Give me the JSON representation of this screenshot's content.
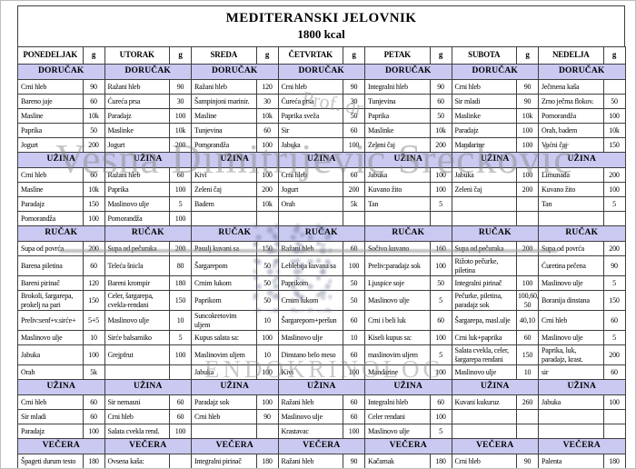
{
  "page": {
    "title_line1": "MEDITERANSKI JELOVNIK",
    "title_line2": "1800 kcal"
  },
  "colors": {
    "section_header_bg": "#c9c9f1",
    "border": "#3f3f3f",
    "watermark_gray": "#8a8a8a"
  },
  "watermarks": {
    "prof": "Prof. dr",
    "name": "Vesna Dimitrijević Srećković",
    "endo": "ENDOKRINOLOG"
  },
  "table": {
    "g_label": "g",
    "days": [
      "PONEDELJAK",
      "UTORAK",
      "SREDA",
      "ČETVRTAK",
      "PETAK",
      "SUBOTA",
      "NEDELJA"
    ],
    "sections": [
      {
        "label": "DORUČAK",
        "rows": [
          [
            [
              "Crni hleb",
              "90"
            ],
            [
              "Ražani hleb",
              "90"
            ],
            [
              "Ražani hleb",
              "120"
            ],
            [
              "Crni hleb",
              "90"
            ],
            [
              "Integralni hleb",
              "90"
            ],
            [
              "Crni hleb",
              "90"
            ],
            [
              "Ječmena kaša",
              ""
            ]
          ],
          [
            [
              "Bareno jaje",
              "60"
            ],
            [
              "Ćureća prsa",
              "30"
            ],
            [
              "Šampinjoni marinir.",
              "30"
            ],
            [
              "Ćureća prsa",
              "30"
            ],
            [
              "Tunjevina",
              "60"
            ],
            [
              "Sir mladi",
              "90"
            ],
            [
              "Zrno ječma flokov.",
              "50"
            ]
          ],
          [
            [
              "Masline",
              "10k"
            ],
            [
              "Paradajz",
              "100"
            ],
            [
              "Masline",
              "10k"
            ],
            [
              "Paprika sveža",
              "50"
            ],
            [
              "Paprika",
              "50"
            ],
            [
              "Maslinke",
              "10k"
            ],
            [
              "Pomorandža",
              "100"
            ]
          ],
          [
            [
              "Paprika",
              "50"
            ],
            [
              "Maslinke",
              "10k"
            ],
            [
              "Tunjevina",
              "60"
            ],
            [
              "Sir",
              "60"
            ],
            [
              "Maslinke",
              "10k"
            ],
            [
              "Paradajz",
              "100"
            ],
            [
              "Orah, badem",
              "10k"
            ]
          ],
          [
            [
              "Jogurt",
              "200"
            ],
            [
              "Jogurt",
              "200"
            ],
            [
              "Pomorandža",
              "100"
            ],
            [
              "Jabuka",
              "100"
            ],
            [
              "Zeleni čaj",
              "200"
            ],
            [
              "Mandarine",
              "100"
            ],
            [
              "Voćni čaj",
              "150"
            ]
          ]
        ]
      },
      {
        "label": "UŽINA",
        "rows": [
          [
            [
              "Crni hleb",
              "60"
            ],
            [
              "Ražani hleb",
              "60"
            ],
            [
              "Kivi",
              "100"
            ],
            [
              "Crni hleb",
              "60"
            ],
            [
              "Jabuka",
              "100"
            ],
            [
              "Jabuka",
              "100"
            ],
            [
              "Limunada",
              "200"
            ]
          ],
          [
            [
              "Masline",
              "10k"
            ],
            [
              "Paprika",
              "100"
            ],
            [
              "Zeleni čaj",
              "200"
            ],
            [
              "Jogurt",
              "200"
            ],
            [
              "Kuvano žito",
              "100"
            ],
            [
              "Zeleni čaj",
              "200"
            ],
            [
              "Kuvano žito",
              "100"
            ]
          ],
          [
            [
              "Paradajz",
              "150"
            ],
            [
              "Maslinovo ulje",
              "5"
            ],
            [
              "Badem",
              "10k"
            ],
            [
              "Orah",
              "5k"
            ],
            [
              "Tan",
              "5"
            ],
            [
              "",
              ""
            ],
            [
              "Tan",
              "5"
            ]
          ],
          [
            [
              "Pomorandža",
              "100"
            ],
            [
              "Pomorandža",
              "100"
            ],
            [
              "",
              ""
            ],
            [
              "",
              ""
            ],
            [
              "",
              ""
            ],
            [
              "",
              ""
            ],
            [
              "",
              ""
            ]
          ]
        ]
      },
      {
        "label": "RUČAK",
        "rows": [
          [
            [
              "Supa od povrća",
              "200"
            ],
            [
              "Supa od pečuraka",
              "200"
            ],
            [
              "Pasulj kuvani sa",
              "150"
            ],
            [
              "Ražani hleb",
              "60"
            ],
            [
              "Sočivo kuvano",
              "160"
            ],
            [
              "Supa od pečuraka",
              "200"
            ],
            [
              "Supa od povrća",
              "200"
            ]
          ],
          [
            [
              "Barena piletina",
              "60"
            ],
            [
              "Teleća šnicla",
              "80"
            ],
            [
              "Šargarepom",
              "50"
            ],
            [
              "Leblebija kuvana sa",
              "100"
            ],
            [
              "Preliv:paradajz sok",
              "100"
            ],
            [
              "Rižoto pečurke, piletina",
              ""
            ],
            [
              "Ćuretina pečena",
              "90"
            ]
          ],
          [
            [
              "Bareni pirinač",
              "120"
            ],
            [
              "Bareni krompir",
              "180"
            ],
            [
              "Crnim lukom",
              "50"
            ],
            [
              "Paprikom",
              "50"
            ],
            [
              "Ljuspice soje",
              "50"
            ],
            [
              "Integralni pirinač",
              "100"
            ],
            [
              "Maslinovo ulje",
              "5"
            ]
          ],
          [
            [
              "Brokoli, šargarepa, prokelj na pari",
              "150"
            ],
            [
              "Celer, šargarepa, cvekla-rendani",
              "150"
            ],
            [
              "Paprikom",
              "50"
            ],
            [
              "Crnim lukom",
              "50"
            ],
            [
              "Maslinovo ulje",
              "5"
            ],
            [
              "Pečurke, piletina, paradajz sok",
              "100,60, 50"
            ],
            [
              "Boranija dinstana",
              "150"
            ]
          ],
          [
            [
              "Preliv:senf+v.sirće+",
              "5+5"
            ],
            [
              "Maslinovo ulje",
              "10"
            ],
            [
              "Suncokretovim uljem",
              "10"
            ],
            [
              "Šargarepom+peršun",
              "60"
            ],
            [
              "Crni i beli luk",
              "60"
            ],
            [
              "Šargarepa, masl.ulje",
              "40,10"
            ],
            [
              "Crni hleb",
              "60"
            ]
          ],
          [
            [
              "Maslinovo ulje",
              "10"
            ],
            [
              "Sirće balsamiko",
              "5"
            ],
            [
              "Kupus salata sa:",
              "100"
            ],
            [
              "Maslinovo ulje",
              "10"
            ],
            [
              "Kiseli kupus sa:",
              "100"
            ],
            [
              "Crni luk+paprika",
              "60"
            ],
            [
              "Maslinovo ulje",
              "5"
            ]
          ],
          [
            [
              "Jabuka",
              "100"
            ],
            [
              "Grejpfrut",
              "100"
            ],
            [
              "Maslinovim uljem",
              "10"
            ],
            [
              "Dinstano belo meso",
              "60"
            ],
            [
              "maslinovim uljem",
              "5"
            ],
            [
              "Salata cvekla, celer, šargarepa rendani",
              "150"
            ],
            [
              "Paprika, luk, paradajz, krast.",
              "200"
            ]
          ],
          [
            [
              "Orah",
              "5k"
            ],
            [
              "",
              ""
            ],
            [
              "Jabuka",
              "100"
            ],
            [
              "Kivi",
              "100"
            ],
            [
              "Mandarine",
              "100"
            ],
            [
              "Maslinovo ulje",
              "10"
            ],
            [
              "sir",
              "60"
            ]
          ]
        ]
      },
      {
        "label": "UŽINA",
        "rows": [
          [
            [
              "Crni hleb",
              "60"
            ],
            [
              "Sir nemasni",
              "60"
            ],
            [
              "Paradajz sok",
              "100"
            ],
            [
              "Ražani hleb",
              "60"
            ],
            [
              "Integralni hleb",
              "60"
            ],
            [
              "Kuvani kukuruz",
              "260"
            ],
            [
              "Jabuka",
              "100"
            ]
          ],
          [
            [
              "Sir mladi",
              "60"
            ],
            [
              "Crni hleb",
              "60"
            ],
            [
              "Crni hleb",
              "90"
            ],
            [
              "Maslinovo ulje",
              "60"
            ],
            [
              "Celer rendani",
              "100"
            ],
            [
              "",
              ""
            ],
            [
              "",
              ""
            ]
          ],
          [
            [
              "Paradajz",
              "100"
            ],
            [
              "Salata cvekla rend.",
              "100"
            ],
            [
              "",
              ""
            ],
            [
              "Krastavac",
              "100"
            ],
            [
              "Maslinovo ulje",
              "5"
            ],
            [
              "",
              ""
            ],
            [
              "",
              ""
            ]
          ]
        ]
      },
      {
        "label": "VEČERA",
        "rows": [
          [
            [
              "Špageti durum testo",
              "180"
            ],
            [
              "Ovsena kaša:",
              ""
            ],
            [
              "Integralni pirinač",
              "180"
            ],
            [
              "Ražani hleb",
              "90"
            ],
            [
              "Kačamak",
              "180"
            ],
            [
              "Crni hleb",
              "90"
            ],
            [
              "Palenta",
              "180"
            ]
          ]
        ]
      }
    ]
  }
}
